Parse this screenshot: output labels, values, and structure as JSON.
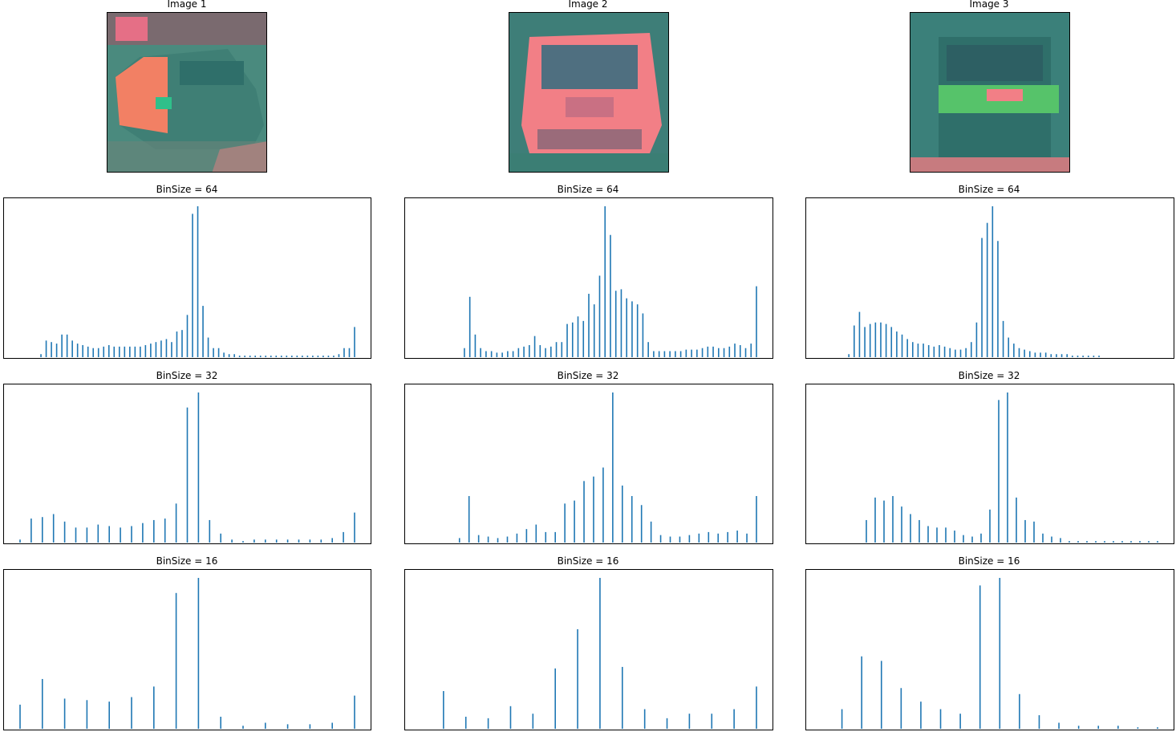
{
  "images": [
    {
      "title": "Image 1",
      "palette": [
        "#2f8f80",
        "#f27f67",
        "#5a7a6e",
        "#47a08e",
        "#ee6f75"
      ]
    },
    {
      "title": "Image 2",
      "palette": [
        "#2f8f80",
        "#f27f86",
        "#3b7b80",
        "#d85a7a",
        "#2c6f71"
      ]
    },
    {
      "title": "Image 3",
      "palette": [
        "#2f8f80",
        "#2d6d6a",
        "#4d9b6d",
        "#56c36a",
        "#f27f86"
      ]
    }
  ],
  "chart_data": [
    {
      "type": "bar",
      "title": "BinSize = 64",
      "color": "#1f77b4",
      "ylim": [
        0,
        100
      ],
      "values": [
        0,
        0,
        0,
        0,
        2,
        11,
        10,
        9,
        15,
        15,
        11,
        9,
        8,
        7,
        6,
        6,
        7,
        8,
        7,
        7,
        7,
        7,
        7,
        7,
        8,
        9,
        10,
        11,
        12,
        10,
        17,
        18,
        28,
        95,
        100,
        34,
        13,
        6,
        6,
        3,
        2,
        2,
        1,
        1,
        1,
        1,
        1,
        1,
        1,
        1,
        1,
        1,
        1,
        1,
        1,
        1,
        1,
        1,
        1,
        1,
        1,
        2,
        6,
        6,
        20
      ]
    },
    {
      "type": "bar",
      "title": "BinSize = 64",
      "color": "#1f77b4",
      "ylim": [
        0,
        100
      ],
      "values": [
        0,
        0,
        0,
        0,
        0,
        0,
        0,
        0,
        6,
        40,
        15,
        6,
        4,
        4,
        3,
        3,
        4,
        4,
        6,
        7,
        8,
        14,
        8,
        6,
        7,
        10,
        10,
        22,
        23,
        27,
        24,
        42,
        35,
        54,
        100,
        81,
        44,
        45,
        39,
        37,
        35,
        29,
        10,
        4,
        4,
        4,
        4,
        4,
        4,
        5,
        5,
        5,
        6,
        7,
        7,
        6,
        6,
        7,
        9,
        8,
        6,
        9,
        47
      ]
    },
    {
      "type": "bar",
      "title": "BinSize = 64",
      "color": "#1f77b4",
      "ylim": [
        0,
        100
      ],
      "values": [
        0,
        0,
        0,
        0,
        0,
        2,
        21,
        30,
        20,
        22,
        23,
        23,
        22,
        20,
        17,
        15,
        12,
        10,
        9,
        9,
        8,
        7,
        8,
        7,
        6,
        5,
        5,
        6,
        10,
        23,
        79,
        89,
        100,
        77,
        24,
        13,
        9,
        6,
        5,
        4,
        3,
        3,
        3,
        2,
        2,
        2,
        2,
        1,
        1,
        1,
        1,
        1,
        1,
        0,
        0,
        0,
        0,
        0,
        0,
        0,
        0,
        0,
        0,
        0
      ]
    },
    {
      "type": "bar",
      "title": "BinSize = 32",
      "color": "#1f77b4",
      "ylim": [
        0,
        100
      ],
      "values": [
        2,
        16,
        17,
        19,
        14,
        10,
        10,
        12,
        11,
        10,
        11,
        13,
        15,
        16,
        26,
        90,
        100,
        15,
        6,
        2,
        1,
        2,
        2,
        2,
        2,
        2,
        2,
        2,
        3,
        7,
        20
      ]
    },
    {
      "type": "bar",
      "title": "BinSize = 32",
      "color": "#1f77b4",
      "ylim": [
        0,
        100
      ],
      "values": [
        0,
        0,
        0,
        0,
        3,
        31,
        5,
        4,
        3,
        4,
        6,
        9,
        12,
        7,
        7,
        26,
        28,
        41,
        44,
        50,
        100,
        38,
        31,
        25,
        14,
        5,
        4,
        4,
        5,
        6,
        7,
        6,
        7,
        8,
        6,
        31
      ]
    },
    {
      "type": "bar",
      "title": "BinSize = 32",
      "color": "#1f77b4",
      "ylim": [
        0,
        100
      ],
      "values": [
        0,
        0,
        0,
        0,
        0,
        15,
        30,
        28,
        31,
        24,
        19,
        15,
        11,
        10,
        10,
        8,
        5,
        4,
        6,
        22,
        95,
        100,
        30,
        15,
        14,
        6,
        4,
        3,
        1,
        1,
        1,
        1,
        1,
        1,
        1,
        1,
        1,
        1,
        1
      ]
    },
    {
      "type": "bar",
      "title": "BinSize = 16",
      "color": "#1f77b4",
      "ylim": [
        0,
        100
      ],
      "values": [
        16,
        33,
        20,
        19,
        18,
        21,
        28,
        90,
        100,
        8,
        2,
        4,
        3,
        3,
        4,
        22
      ]
    },
    {
      "type": "bar",
      "title": "BinSize = 16",
      "color": "#1f77b4",
      "ylim": [
        0,
        100
      ],
      "values": [
        0,
        25,
        8,
        7,
        15,
        10,
        40,
        66,
        100,
        41,
        13,
        7,
        10,
        10,
        13,
        28
      ]
    },
    {
      "type": "bar",
      "title": "BinSize = 16",
      "color": "#1f77b4",
      "ylim": [
        0,
        100
      ],
      "values": [
        0,
        13,
        48,
        45,
        27,
        18,
        13,
        10,
        95,
        100,
        23,
        9,
        4,
        2,
        2,
        2,
        1,
        1
      ]
    }
  ]
}
